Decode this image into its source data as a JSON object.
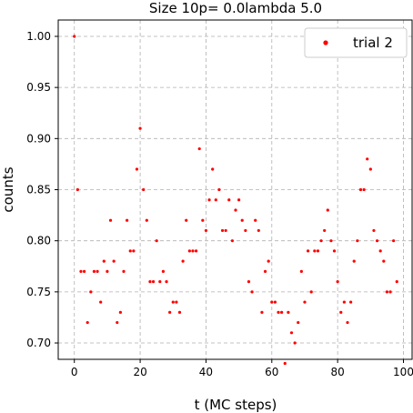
{
  "chart_data": {
    "type": "scatter",
    "title": "Size 10p= 0.0lambda 5.0",
    "xlabel": "t (MC steps)",
    "ylabel": "counts",
    "xlim": [
      -4.9,
      102.9
    ],
    "ylim": [
      0.684,
      1.016
    ],
    "xticks": [
      0,
      20,
      40,
      60,
      80,
      100
    ],
    "yticks": [
      0.7,
      0.75,
      0.8,
      0.85,
      0.9,
      0.95,
      1.0
    ],
    "ytick_labels": [
      "0.70",
      "0.75",
      "0.80",
      "0.85",
      "0.90",
      "0.95",
      "1.00"
    ],
    "grid": true,
    "legend_position": "top-right",
    "series": [
      {
        "name": "trial 2",
        "color": "#ff0000",
        "x": [
          0,
          1,
          2,
          3,
          4,
          5,
          6,
          7,
          8,
          9,
          10,
          11,
          12,
          13,
          14,
          15,
          16,
          17,
          18,
          19,
          20,
          21,
          22,
          23,
          24,
          25,
          26,
          27,
          28,
          29,
          30,
          31,
          32,
          33,
          34,
          35,
          36,
          37,
          38,
          39,
          40,
          41,
          42,
          43,
          44,
          45,
          46,
          47,
          48,
          49,
          50,
          51,
          52,
          53,
          54,
          55,
          56,
          57,
          58,
          59,
          60,
          61,
          62,
          63,
          64,
          65,
          66,
          67,
          68,
          69,
          70,
          71,
          72,
          73,
          74,
          75,
          76,
          77,
          78,
          79,
          80,
          81,
          82,
          83,
          84,
          85,
          86,
          87,
          88,
          89,
          90,
          91,
          92,
          93,
          94,
          95,
          96,
          97,
          98
        ],
        "y": [
          1.0,
          0.85,
          0.77,
          0.77,
          0.72,
          0.75,
          0.77,
          0.77,
          0.74,
          0.78,
          0.77,
          0.82,
          0.78,
          0.72,
          0.73,
          0.77,
          0.82,
          0.79,
          0.79,
          0.87,
          0.91,
          0.85,
          0.82,
          0.76,
          0.76,
          0.8,
          0.76,
          0.77,
          0.76,
          0.73,
          0.74,
          0.74,
          0.73,
          0.78,
          0.82,
          0.79,
          0.79,
          0.79,
          0.89,
          0.82,
          0.81,
          0.84,
          0.87,
          0.84,
          0.85,
          0.81,
          0.81,
          0.84,
          0.8,
          0.83,
          0.84,
          0.82,
          0.81,
          0.76,
          0.75,
          0.82,
          0.81,
          0.73,
          0.77,
          0.78,
          0.74,
          0.74,
          0.73,
          0.73,
          0.68,
          0.73,
          0.71,
          0.7,
          0.72,
          0.77,
          0.74,
          0.79,
          0.75,
          0.79,
          0.79,
          0.8,
          0.81,
          0.83,
          0.8,
          0.79,
          0.76,
          0.73,
          0.74,
          0.72,
          0.74,
          0.78,
          0.8,
          0.85,
          0.85,
          0.88,
          0.87,
          0.81,
          0.8,
          0.79,
          0.78,
          0.75,
          0.75,
          0.8,
          0.76
        ]
      }
    ]
  }
}
